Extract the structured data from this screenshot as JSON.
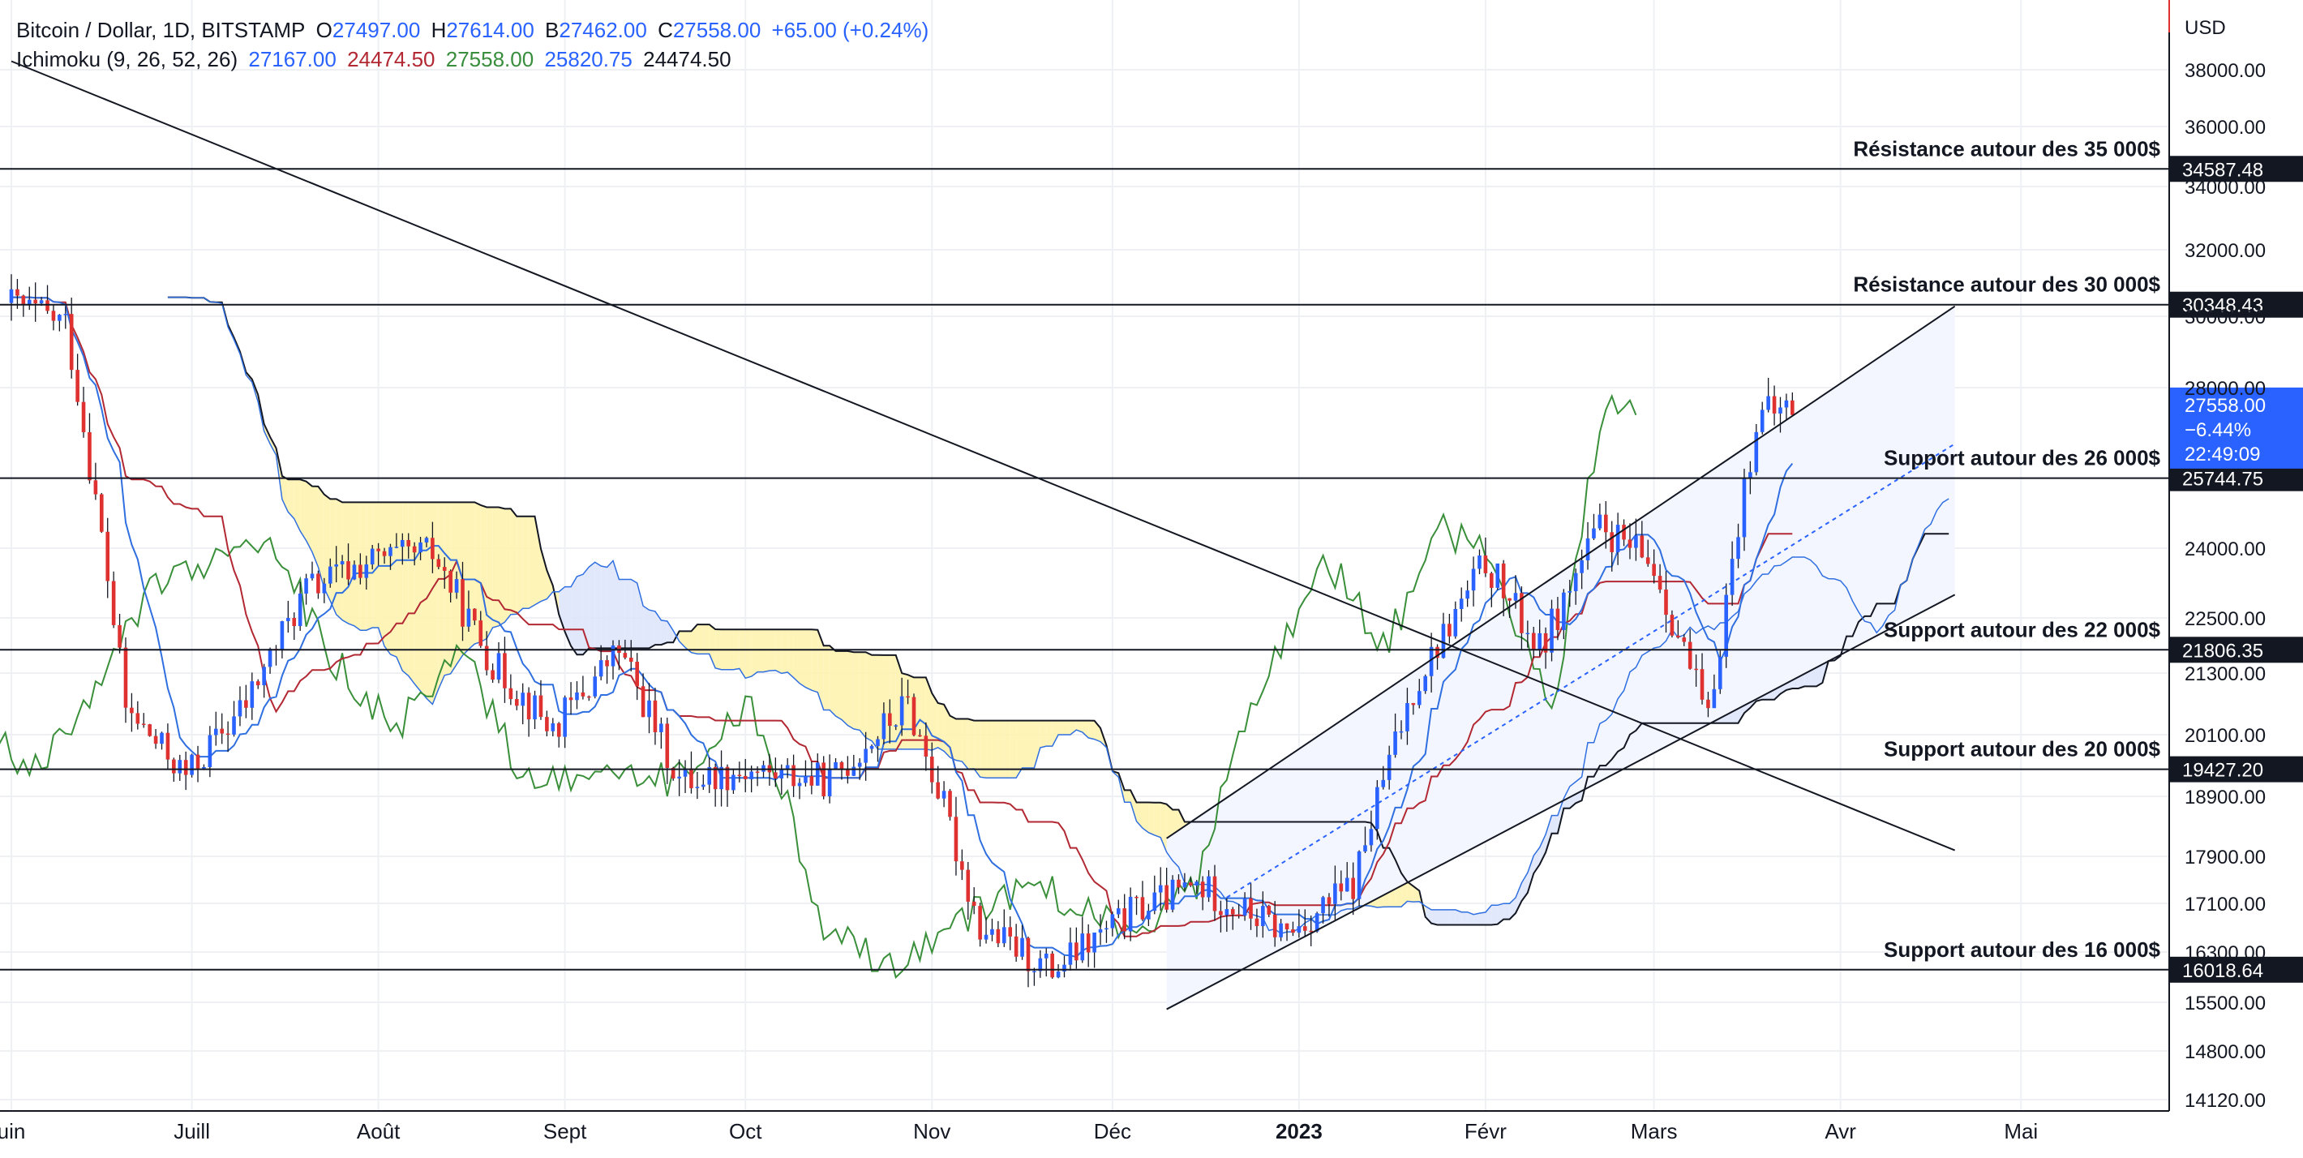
{
  "header": {
    "symbol": "Bitcoin / Dollar, 1D, BITSTAMP",
    "o_label": "O",
    "o_value": "27497.00",
    "h_label": "H",
    "h_value": "27614.00",
    "b_label": "B",
    "b_value": "27462.00",
    "c_label": "C",
    "c_value": "27558.00",
    "change": "+65.00 (+0.24%)"
  },
  "indicator": {
    "name": "Ichimoku (9, 26, 52, 26)",
    "v1": "27167.00",
    "v2": "24474.50",
    "v3": "27558.00",
    "v4": "25820.75",
    "v5": "24474.50"
  },
  "colors": {
    "up": "#2962ff",
    "down": "#e03131",
    "tenkan": "#2f6fe0",
    "kijun": "#b22833",
    "chikou": "#3a8f3a",
    "span_b": "#131722",
    "kumo_bear": "#fff3b0",
    "kumo_bull": "#dfe6fb",
    "channel_fill": "#f3f6ff",
    "price_badge": "#2962ff"
  },
  "chart_data": {
    "type": "candlestick",
    "currency": "USD",
    "x_labels": [
      "uin",
      "Juill",
      "Août",
      "Sept",
      "Oct",
      "Nov",
      "Déc",
      "2023",
      "Févr",
      "Mars",
      "Avr",
      "Mai"
    ],
    "y_ticks": [
      "38000.00",
      "36000.00",
      "34000.00",
      "32000.00",
      "30000.00",
      "28000.00",
      "24000.00",
      "22500.00",
      "21300.00",
      "20100.00",
      "18900.00",
      "17900.00",
      "17100.00",
      "16300.00",
      "15500.00",
      "14800.00",
      "14120.00"
    ],
    "horizontal_levels": [
      {
        "value": 34587.48,
        "label": "34587.48",
        "annotation": "Résistance autour des 35 000$"
      },
      {
        "value": 30348.43,
        "label": "30348.43",
        "annotation": "Résistance autour des 30 000$"
      },
      {
        "value": 25744.75,
        "label": "25744.75",
        "annotation": "Support autour des 26 000$"
      },
      {
        "value": 21806.35,
        "label": "21806.35",
        "annotation": "Support autour des 22 000$"
      },
      {
        "value": 19427.2,
        "label": "19427.20",
        "annotation": "Support autour des 20 000$"
      },
      {
        "value": 16018.64,
        "label": "16018.64",
        "annotation": "Support autour des 16 000$"
      }
    ],
    "last_price": {
      "price": "27558.00",
      "change_pct": "−6.44%",
      "countdown": "22:49:09"
    },
    "weekly_closes": [
      {
        "x": "2022-06-01",
        "close": 30400
      },
      {
        "x": "2022-06-10",
        "close": 29800
      },
      {
        "x": "2022-06-20",
        "close": 20600
      },
      {
        "x": "2022-06-30",
        "close": 19300
      },
      {
        "x": "2022-07-10",
        "close": 20700
      },
      {
        "x": "2022-07-20",
        "close": 23100
      },
      {
        "x": "2022-07-30",
        "close": 23700
      },
      {
        "x": "2022-08-10",
        "close": 23900
      },
      {
        "x": "2022-08-20",
        "close": 21500
      },
      {
        "x": "2022-08-30",
        "close": 20200
      },
      {
        "x": "2022-09-10",
        "close": 21800
      },
      {
        "x": "2022-09-20",
        "close": 19200
      },
      {
        "x": "2022-10-01",
        "close": 19400
      },
      {
        "x": "2022-10-15",
        "close": 19200
      },
      {
        "x": "2022-10-28",
        "close": 20700
      },
      {
        "x": "2022-11-09",
        "close": 16700
      },
      {
        "x": "2022-11-21",
        "close": 16000
      },
      {
        "x": "2022-12-05",
        "close": 17000
      },
      {
        "x": "2022-12-15",
        "close": 17400
      },
      {
        "x": "2022-12-30",
        "close": 16600
      },
      {
        "x": "2023-01-10",
        "close": 17400
      },
      {
        "x": "2023-01-20",
        "close": 21000
      },
      {
        "x": "2023-02-01",
        "close": 23700
      },
      {
        "x": "2023-02-10",
        "close": 21800
      },
      {
        "x": "2023-02-20",
        "close": 24500
      },
      {
        "x": "2023-03-01",
        "close": 23600
      },
      {
        "x": "2023-03-10",
        "close": 20300
      },
      {
        "x": "2023-03-18",
        "close": 27200
      },
      {
        "x": "2023-03-24",
        "close": 27558
      }
    ]
  }
}
